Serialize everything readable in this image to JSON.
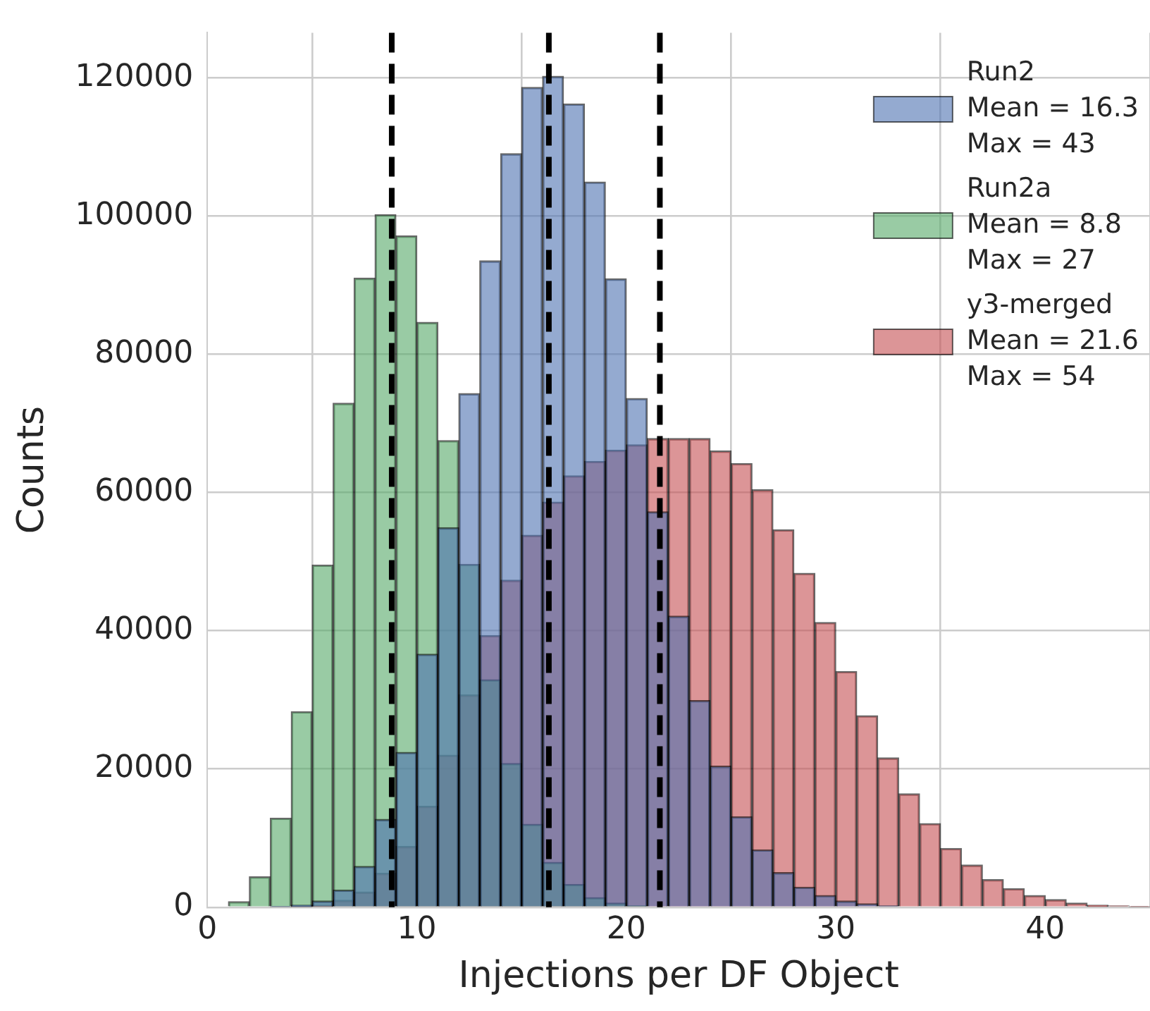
{
  "chart_data": {
    "type": "histogram",
    "xlabel": "Injections per DF Object",
    "ylabel": "Counts",
    "bins": [
      0,
      1,
      2,
      3,
      4,
      5,
      6,
      7,
      8,
      9,
      10,
      11,
      12,
      13,
      14,
      15,
      16,
      17,
      18,
      19,
      20,
      21,
      22,
      23,
      24,
      25,
      26,
      27,
      28,
      29,
      30,
      31,
      32,
      33,
      34,
      35,
      36,
      37,
      38,
      39,
      40,
      41,
      42,
      43,
      44,
      45
    ],
    "series": [
      {
        "name": "Run2\nMean = 16.3\nMax = 43",
        "color": "#4c72b0",
        "values": [
          0,
          0,
          0,
          100,
          300,
          900,
          2500,
          5900,
          12700,
          22400,
          36600,
          54900,
          74300,
          93500,
          109000,
          118600,
          120200,
          116200,
          104900,
          90900,
          73600,
          57200,
          42100,
          29900,
          20400,
          13100,
          8300,
          5000,
          2900,
          1700,
          900,
          500,
          200,
          0,
          0,
          0,
          0,
          0,
          0,
          0,
          0,
          0,
          0,
          0,
          0
        ]
      },
      {
        "name": "Run2a\nMean = 8.8\nMax = 27",
        "color": "#55a868",
        "values": [
          0,
          800,
          4400,
          12900,
          28300,
          49500,
          72900,
          91000,
          100200,
          97100,
          84600,
          67500,
          49600,
          32900,
          20800,
          12000,
          6500,
          3300,
          1400,
          600,
          200,
          0,
          0,
          0,
          0,
          0,
          0,
          0,
          0,
          0,
          0,
          0,
          0,
          0,
          0,
          0,
          0,
          0,
          0,
          0,
          0,
          0,
          0,
          0,
          0
        ]
      },
      {
        "name": "y3-merged\nMean = 21.6\nMax = 54",
        "color": "#c44e52",
        "values": [
          0,
          0,
          0,
          0,
          100,
          300,
          1000,
          2200,
          4900,
          8800,
          14600,
          22000,
          30700,
          39300,
          47300,
          53800,
          58600,
          62400,
          64500,
          66100,
          66900,
          67800,
          67800,
          67800,
          66000,
          64200,
          60400,
          54600,
          48300,
          41200,
          34100,
          27700,
          21600,
          16400,
          12100,
          8500,
          6100,
          4000,
          2700,
          1700,
          1100,
          600,
          300,
          200,
          100
        ]
      }
    ],
    "ref_lines": [
      {
        "axis": "x",
        "value": 8.8,
        "color": "#000000",
        "line_style": "dashed"
      },
      {
        "axis": "x",
        "value": 16.3,
        "color": "#000000",
        "line_style": "dashed"
      },
      {
        "axis": "x",
        "value": 21.6,
        "color": "#000000",
        "line_style": "dashed"
      }
    ],
    "xlim": [
      0,
      45
    ],
    "xticks": [
      0,
      10,
      20,
      30,
      40
    ],
    "ylim": [
      0,
      126500
    ],
    "yticks": [
      0,
      20000,
      40000,
      60000,
      80000,
      100000,
      120000
    ],
    "grid": true,
    "legend": "top right"
  }
}
